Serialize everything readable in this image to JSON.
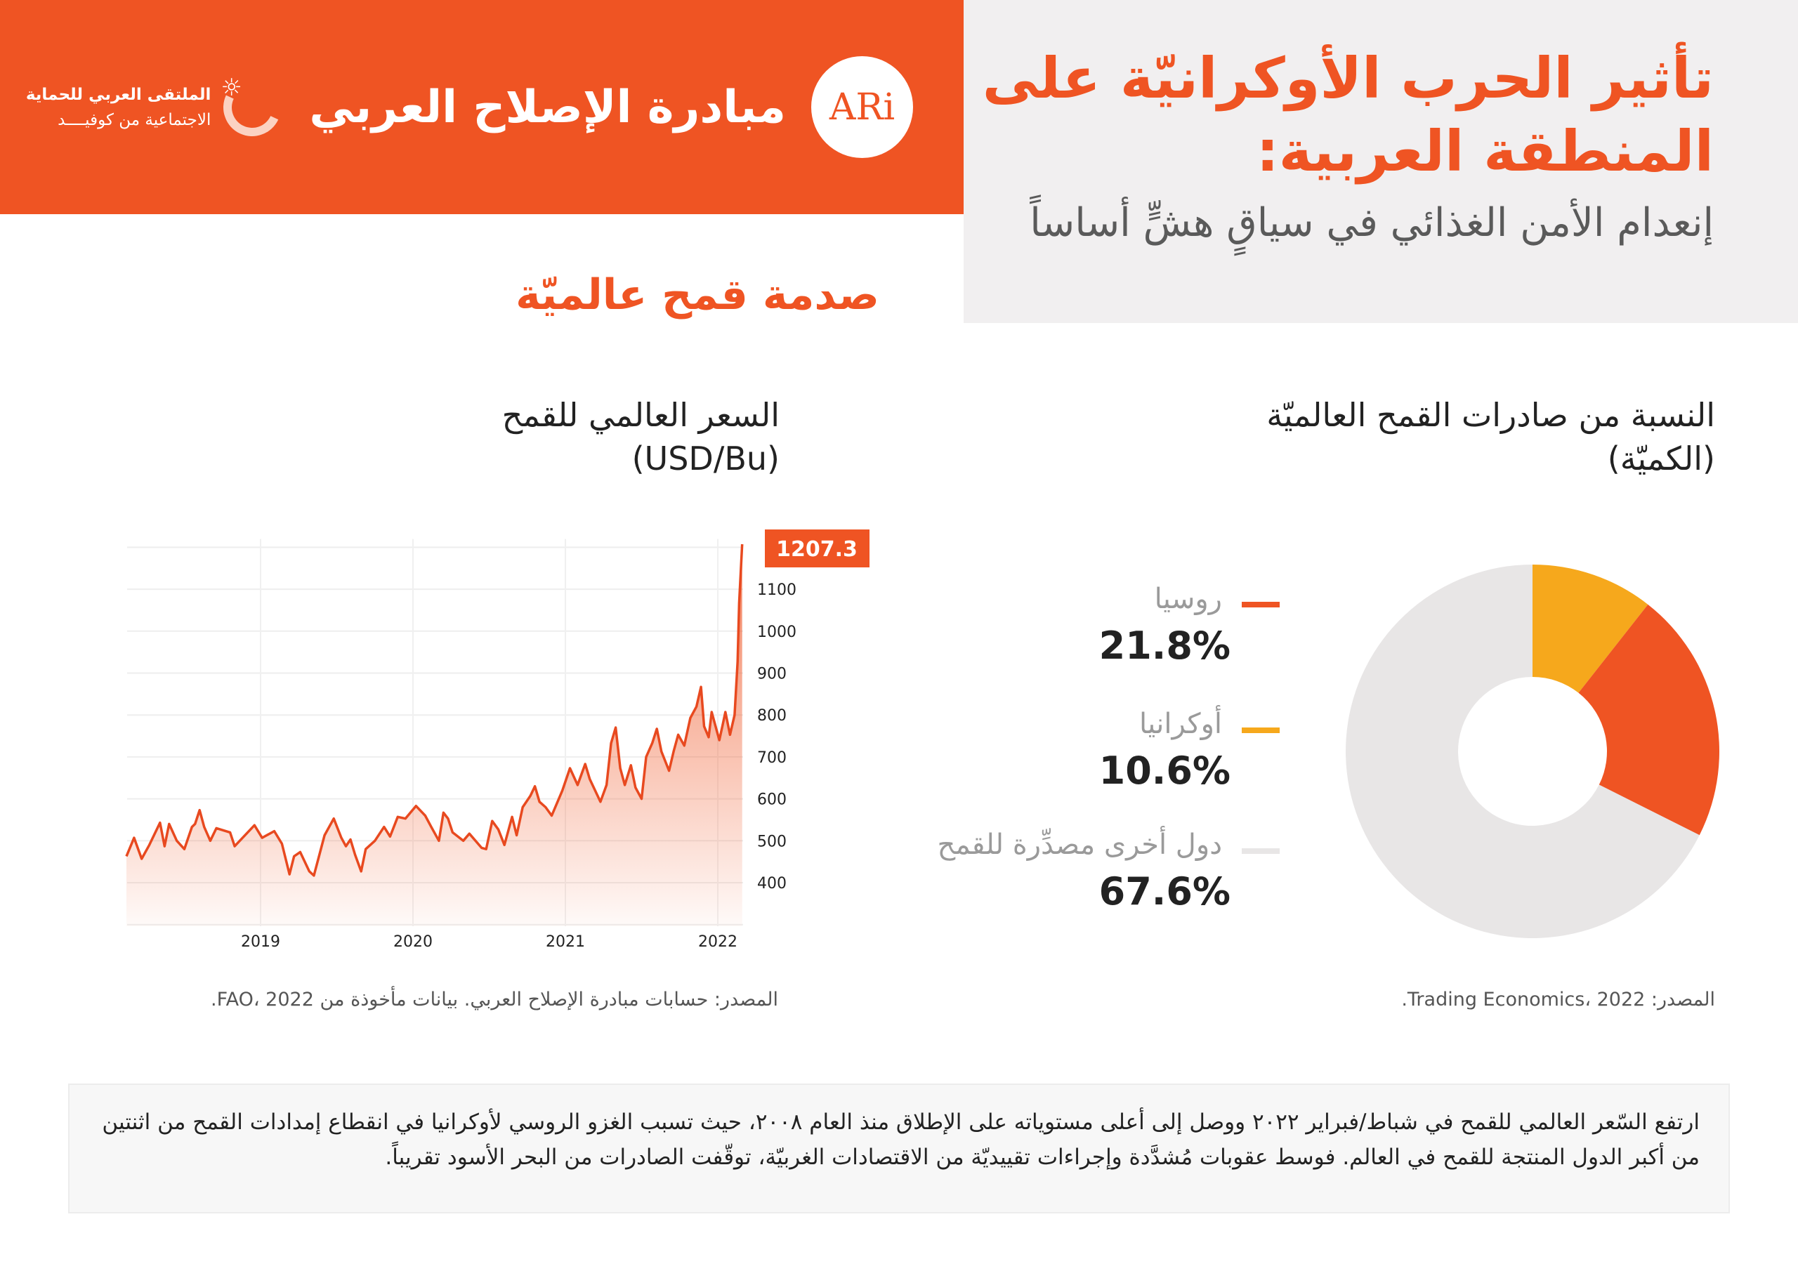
{
  "header": {
    "org_name": "مبادرة الإصلاح العربي",
    "logo_text": "ARi",
    "forum_line1": "الملتقى العربي للحماية",
    "forum_line2": "الاجتماعية من كوفيــــد",
    "title": "تأثير الحرب الأوكرانيّة على المنطقة العربية:",
    "subtitle": "إنعدام الأمن الغذائي في سياقٍ هشٍّ أساساً"
  },
  "section_heading": "صدمة قمح عالميّة",
  "colors": {
    "brand": "#EF5423",
    "russia": "#EF5423",
    "ukraine": "#F6A81C",
    "other": "#E8E6E6",
    "panel": "#F1EFF0"
  },
  "pie": {
    "title_line1": "النسبة من صادرات القمح العالميّة",
    "title_line2": "(الكميّة)",
    "source": "المصدر: Trading Economics، 2022.",
    "legend": [
      {
        "label": "روسيا",
        "value": "21.8%"
      },
      {
        "label": "أوكرانيا",
        "value": "10.6%"
      },
      {
        "label": "دول أخرى مصدِّرة للقمح",
        "value": "67.6%"
      }
    ]
  },
  "line": {
    "title_line1": "السعر العالمي للقمح",
    "title_line2": "(USD/Bu)",
    "source": "المصدر: حسابات مبادرة الإصلاح العربي. بيانات مأخوذة من FAO، 2022.",
    "last_value_label": "1207.3"
  },
  "note": "ارتفع السّعر العالمي للقمح في شباط/فبراير ٢٠٢٢ ووصل إلى أعلى مستوياته على الإطلاق منذ العام ٢٠٠٨، حيث تسبب الغزو الروسي لأوكرانيا في انقطاع إمدادات القمح من اثنتين من أكبر الدول المنتجة للقمح في العالم. فوسط عقوبات مُشدَّدة وإجراءات تقييديّة من الاقتصادات الغربيّة، توقّفت الصادرات من البحر الأسود تقريباً.",
  "chart_data": [
    {
      "type": "pie",
      "style": "donut",
      "categories": [
        "روسيا",
        "أوكرانيا",
        "دول أخرى مصدِّرة للقمح"
      ],
      "values": [
        21.8,
        10.6,
        67.6
      ],
      "colors": [
        "#EF5423",
        "#F6A81C",
        "#E8E6E6"
      ],
      "legend": "left"
    },
    {
      "type": "area",
      "xlabel": "",
      "ylabel": "",
      "ylim": [
        300,
        1220
      ],
      "x_ticks": [
        "2019",
        "2020",
        "2021",
        "2022"
      ],
      "y_ticks": [
        400,
        500,
        600,
        700,
        800,
        900,
        1000,
        1100
      ],
      "grid": true,
      "annotation": "1207.3",
      "points": [
        [
          2018.12,
          463
        ],
        [
          2018.17,
          507
        ],
        [
          2018.22,
          457
        ],
        [
          2018.27,
          490
        ],
        [
          2018.34,
          543
        ],
        [
          2018.37,
          487
        ],
        [
          2018.4,
          540
        ],
        [
          2018.45,
          500
        ],
        [
          2018.5,
          480
        ],
        [
          2018.55,
          533
        ],
        [
          2018.57,
          540
        ],
        [
          2018.6,
          573
        ],
        [
          2018.63,
          533
        ],
        [
          2018.67,
          500
        ],
        [
          2018.71,
          530
        ],
        [
          2018.8,
          520
        ],
        [
          2018.83,
          487
        ],
        [
          2018.96,
          537
        ],
        [
          2019.01,
          507
        ],
        [
          2019.09,
          523
        ],
        [
          2019.14,
          493
        ],
        [
          2019.19,
          420
        ],
        [
          2019.22,
          463
        ],
        [
          2019.26,
          473
        ],
        [
          2019.32,
          427
        ],
        [
          2019.35,
          417
        ],
        [
          2019.42,
          513
        ],
        [
          2019.48,
          553
        ],
        [
          2019.53,
          507
        ],
        [
          2019.56,
          487
        ],
        [
          2019.59,
          503
        ],
        [
          2019.62,
          467
        ],
        [
          2019.66,
          427
        ],
        [
          2019.69,
          480
        ],
        [
          2019.75,
          500
        ],
        [
          2019.81,
          533
        ],
        [
          2019.85,
          510
        ],
        [
          2019.9,
          557
        ],
        [
          2019.95,
          553
        ],
        [
          2020.02,
          583
        ],
        [
          2020.08,
          560
        ],
        [
          2020.12,
          533
        ],
        [
          2020.17,
          500
        ],
        [
          2020.2,
          567
        ],
        [
          2020.23,
          553
        ],
        [
          2020.26,
          520
        ],
        [
          2020.33,
          500
        ],
        [
          2020.37,
          517
        ],
        [
          2020.45,
          483
        ],
        [
          2020.48,
          480
        ],
        [
          2020.52,
          547
        ],
        [
          2020.56,
          527
        ],
        [
          2020.6,
          490
        ],
        [
          2020.65,
          557
        ],
        [
          2020.68,
          513
        ],
        [
          2020.72,
          580
        ],
        [
          2020.77,
          607
        ],
        [
          2020.8,
          630
        ],
        [
          2020.83,
          593
        ],
        [
          2020.87,
          580
        ],
        [
          2020.91,
          560
        ],
        [
          2020.98,
          620
        ],
        [
          2021.03,
          673
        ],
        [
          2021.08,
          633
        ],
        [
          2021.13,
          683
        ],
        [
          2021.16,
          647
        ],
        [
          2021.23,
          593
        ],
        [
          2021.27,
          633
        ],
        [
          2021.3,
          733
        ],
        [
          2021.33,
          770
        ],
        [
          2021.36,
          673
        ],
        [
          2021.39,
          633
        ],
        [
          2021.43,
          680
        ],
        [
          2021.46,
          627
        ],
        [
          2021.5,
          600
        ],
        [
          2021.53,
          700
        ],
        [
          2021.57,
          733
        ],
        [
          2021.6,
          767
        ],
        [
          2021.63,
          713
        ],
        [
          2021.68,
          667
        ],
        [
          2021.71,
          713
        ],
        [
          2021.74,
          753
        ],
        [
          2021.78,
          727
        ],
        [
          2021.82,
          793
        ],
        [
          2021.86,
          820
        ],
        [
          2021.89,
          867
        ],
        [
          2021.91,
          773
        ],
        [
          2021.94,
          747
        ],
        [
          2021.96,
          807
        ],
        [
          2022.01,
          740
        ],
        [
          2022.03,
          773
        ],
        [
          2022.05,
          807
        ],
        [
          2022.08,
          753
        ],
        [
          2022.11,
          800
        ],
        [
          2022.13,
          927
        ],
        [
          2022.14,
          1067
        ],
        [
          2022.16,
          1207.3
        ]
      ]
    }
  ]
}
